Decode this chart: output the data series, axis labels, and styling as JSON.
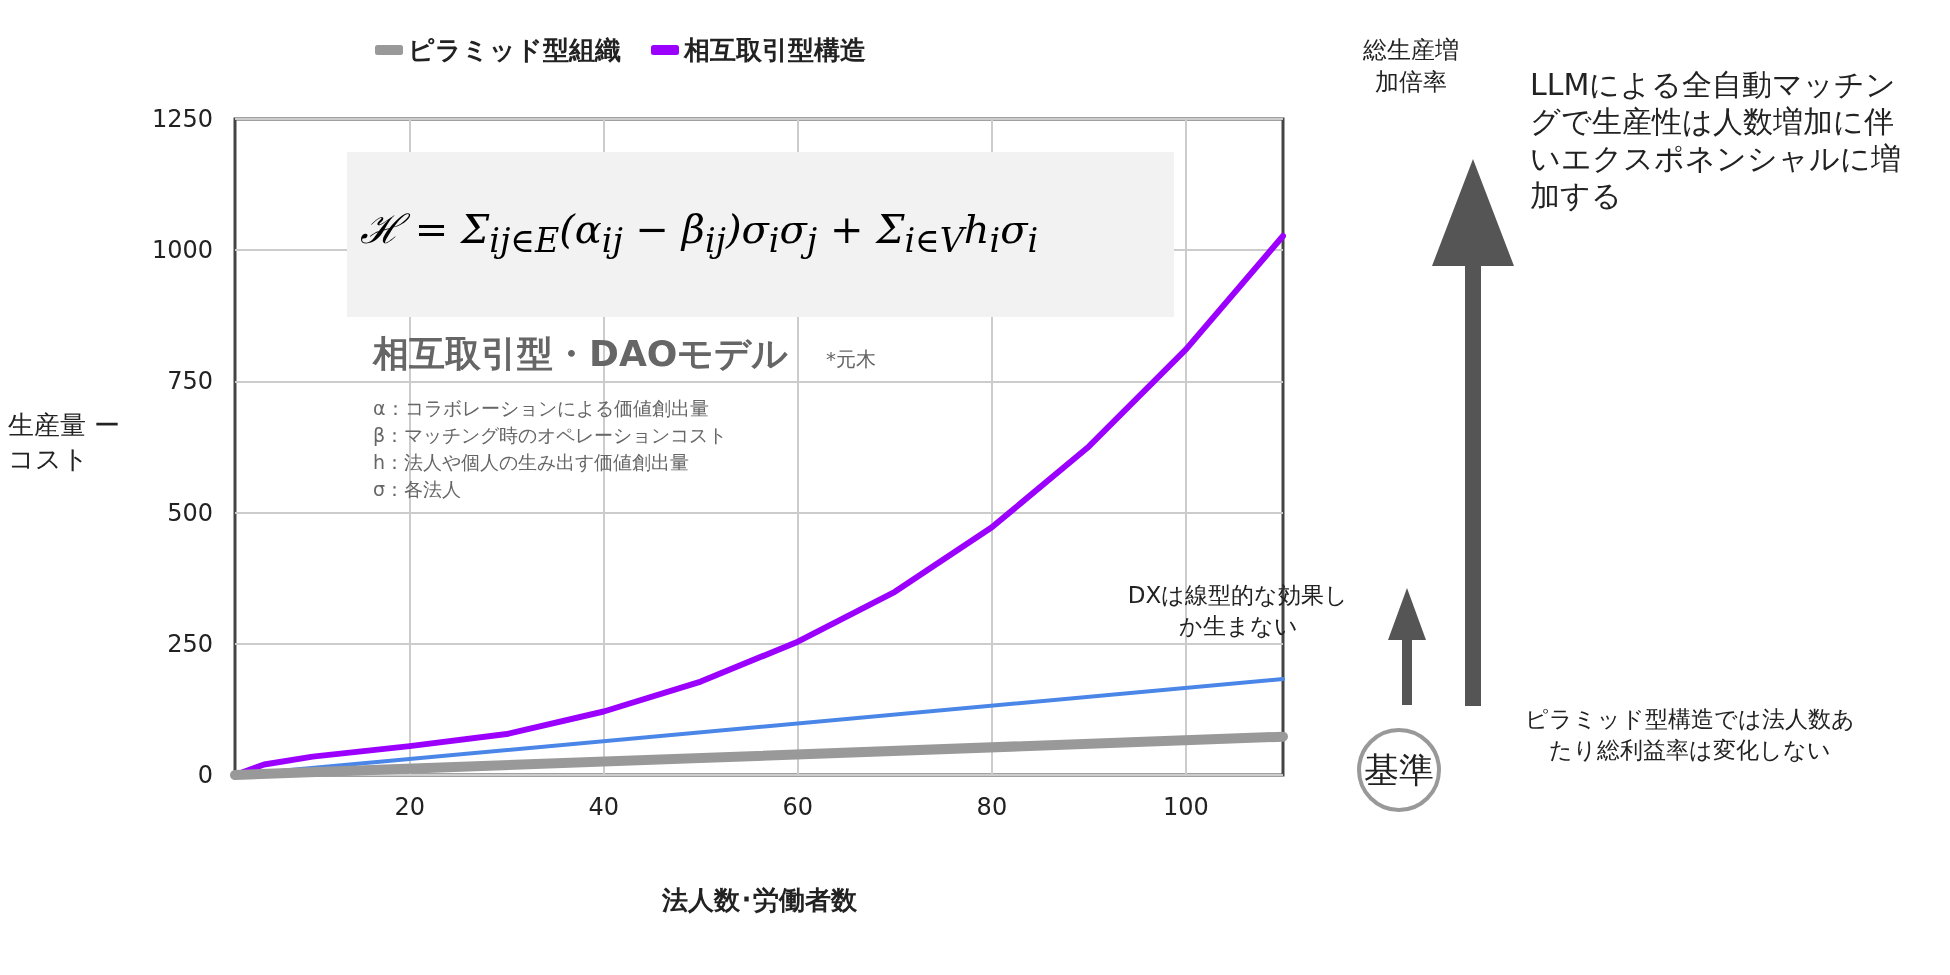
{
  "chart_data": {
    "type": "line",
    "xlabel": "法人数･労働者数",
    "ylabel": "生産量 ーコスト",
    "xlim": [
      2,
      110
    ],
    "xticks": [
      20,
      40,
      60,
      80,
      100
    ],
    "ylim": [
      0,
      1250
    ],
    "yticks": [
      0,
      250,
      500,
      750,
      1000,
      1250
    ],
    "grid": true,
    "legend": "top",
    "marker": "none",
    "line_style": "solid",
    "series": [
      {
        "name": "ピラミッド型組織",
        "color": "#999999",
        "x": [
          2,
          110
        ],
        "values": [
          0,
          73
        ]
      },
      {
        "name": "相互取引型構造",
        "color": "#9b00ff",
        "x": [
          2,
          5,
          10,
          20,
          30,
          40,
          50,
          60,
          70,
          80,
          90,
          100,
          110
        ],
        "values": [
          0,
          20,
          35,
          55,
          78,
          121,
          178,
          254,
          349,
          472,
          626,
          811,
          1027
        ]
      },
      {
        "color": "#4a86e8",
        "x": [
          2,
          110
        ],
        "values": [
          0,
          183
        ]
      }
    ],
    "annotations": [
      "ℋ = Σ$_{ij∈E}$(α$_{ij}$ − β$_{ij}$)σ$_{i}$σ$_{j}$ + Σ$_{i∈V}$h$_{i}$σ$_{i}$",
      "相互取引型・DAOモデル",
      "*元木",
      "α：コラボレーションによる価値創出量",
      "β：マッチング時のオペレーションコスト",
      "h：法人や個人の生み出す価値創出量",
      "σ：各法人",
      "DXは線型的な効果しか生まない",
      "総生産増加倍率",
      "LLMによる全自動マッチングで生産性は人数増加に伴いエクスポネンシャルに増加する",
      "基準",
      "ピラミッド型構造では法人数あたり総利益率は変化しない"
    ]
  }
}
